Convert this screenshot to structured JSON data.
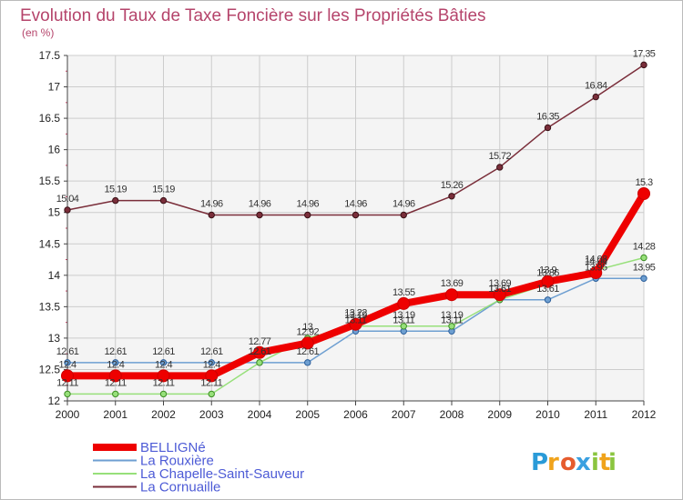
{
  "title": "Evolution du Taux de Taxe Foncière sur les Propriétés Bâties",
  "unit": "(en %)",
  "logo": {
    "letters": [
      "P",
      "r",
      "o",
      "x",
      "i",
      "t",
      "i"
    ],
    "colors": [
      "#2a9bd8",
      "#f0a31b",
      "#e65c2e",
      "#3aa0e0",
      "#8bc53f",
      "#f0a31b",
      "#8bc53f"
    ]
  },
  "chart_data": {
    "type": "line",
    "title": "Evolution du Taux de Taxe Foncière sur les Propriétés Bâties",
    "ylabel": "(en %)",
    "xlabel": "",
    "x": [
      2000,
      2001,
      2002,
      2003,
      2004,
      2005,
      2006,
      2007,
      2008,
      2009,
      2010,
      2011,
      2012
    ],
    "ylim": [
      12,
      17.5
    ],
    "yticks": [
      12,
      12.5,
      13,
      13.5,
      14,
      14.5,
      15,
      15.5,
      16,
      16.5,
      17,
      17.5
    ],
    "grid": true,
    "legend_position": "bottom-left",
    "series": [
      {
        "name": "BELLIGNé",
        "color": "#ee0000",
        "values": [
          12.4,
          12.4,
          12.4,
          12.4,
          12.77,
          12.92,
          13.22,
          13.55,
          13.69,
          13.69,
          13.9,
          14.04,
          15.3
        ],
        "labels": [
          "12.4",
          "12.4",
          "12.4",
          "12.4",
          "12.77",
          "12.92",
          "13.22",
          "13.55",
          "13.69",
          "13.69",
          "13.9",
          "14.04",
          "15.3"
        ]
      },
      {
        "name": "La Rouxière",
        "color": "#6e9fd1",
        "values": [
          12.61,
          12.61,
          12.61,
          12.61,
          12.61,
          12.61,
          13.11,
          13.11,
          13.11,
          13.61,
          13.61,
          13.95,
          13.95
        ],
        "labels": [
          "12.61",
          "12.61",
          "12.61",
          "12.61",
          "12.61",
          "12.61",
          "13.11",
          "13.11",
          "13.11",
          "13.61",
          "13.61",
          "13.95",
          "13.95"
        ]
      },
      {
        "name": "La Chapelle-Saint-Sauveur",
        "color": "#97e07a",
        "values": [
          12.11,
          12.11,
          12.11,
          12.11,
          12.61,
          13.0,
          13.19,
          13.19,
          13.19,
          13.61,
          13.86,
          14.08,
          14.28
        ],
        "labels": [
          "12.11",
          "12.11",
          "12.11",
          "12.11",
          "12.61",
          "13",
          "13.19",
          "13.19",
          "13.19",
          "13.61",
          "13.86",
          "14.08",
          "14.28"
        ]
      },
      {
        "name": "La Cornuaille",
        "color": "#7a2e3a",
        "values": [
          15.04,
          15.19,
          15.19,
          14.96,
          14.96,
          14.96,
          14.96,
          14.96,
          15.26,
          15.72,
          16.35,
          16.84,
          17.35
        ],
        "labels": [
          "15.04",
          "15.19",
          "15.19",
          "14.96",
          "14.96",
          "14.96",
          "14.96",
          "14.96",
          "15.26",
          "15.72",
          "16.35",
          "16.84",
          "17.35"
        ]
      }
    ]
  }
}
